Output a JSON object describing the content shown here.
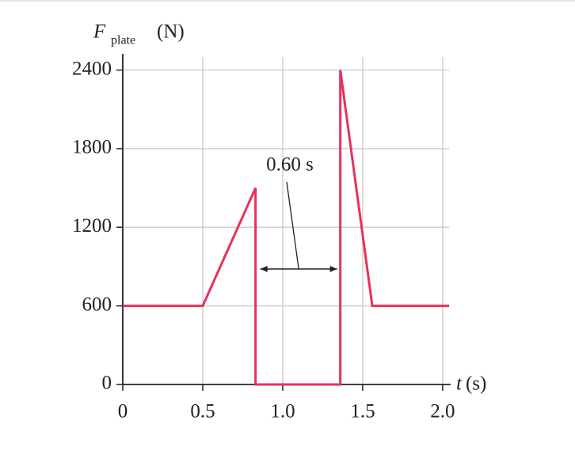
{
  "chart_data": {
    "type": "line",
    "y_label": "F",
    "y_label_sub": "plate",
    "y_label_unit": "(N)",
    "x_label": "t",
    "x_label_unit": "(s)",
    "annotation": "0.60 s",
    "x": [
      0,
      0.5,
      0.83,
      0.83,
      1.36,
      1.36,
      1.56,
      2.04
    ],
    "series": [
      {
        "color": "#e8315b",
        "values": [
          600,
          600,
          1500,
          0,
          0,
          2400,
          600,
          600
        ]
      }
    ],
    "xlim": [
      0,
      2.04
    ],
    "ylim": [
      0,
      2500
    ],
    "xticks": [
      0,
      {
        "value": 0.5,
        "label": "0.5"
      },
      {
        "value": 1,
        "label": "1.0"
      },
      {
        "value": 1.5,
        "label": "1.5"
      },
      {
        "value": 2,
        "label": "2.0"
      }
    ],
    "yticks": [
      0,
      600,
      1200,
      1800,
      2400
    ],
    "grid": true
  }
}
